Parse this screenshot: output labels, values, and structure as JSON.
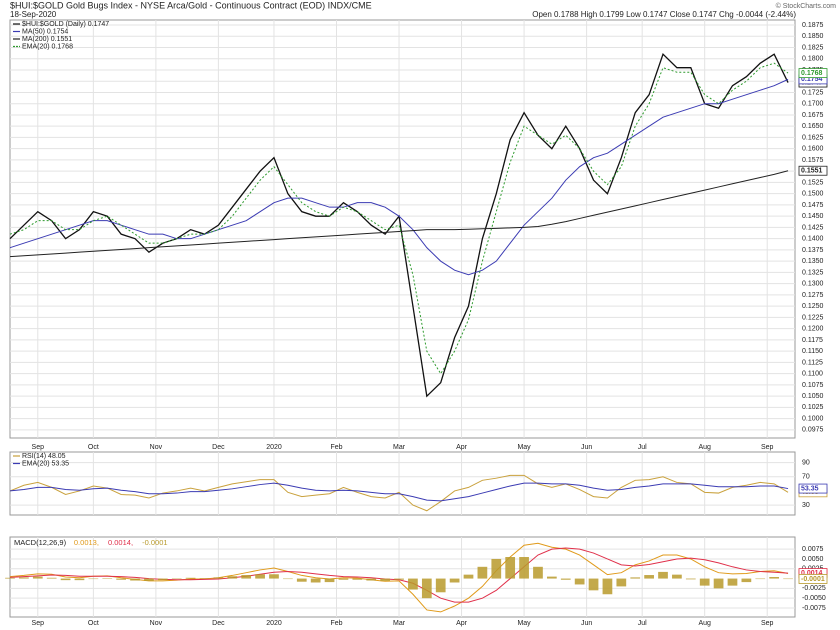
{
  "chart_data": [
    {
      "type": "line",
      "title": "$HUI:$GOLD Gold Bugs Index - NYSE Arca/Gold - Continuous Contract (EOD) INDX/CME",
      "date": "18-Sep-2020",
      "quote": "Open 0.1788 High 0.1799 Low 0.1747 Close 0.1747 Chg -0.0044 (-2.44%)",
      "credit": "© StockCharts.com",
      "xlim": [
        0,
        56.5
      ],
      "xticks": [
        {
          "value": 2,
          "label": "Sep"
        },
        {
          "value": 6,
          "label": "Oct"
        },
        {
          "value": 10.5,
          "label": "Nov"
        },
        {
          "value": 15,
          "label": "Dec"
        },
        {
          "value": 19,
          "label": "2020"
        },
        {
          "value": 23.5,
          "label": "Feb"
        },
        {
          "value": 28,
          "label": "Mar"
        },
        {
          "value": 32.5,
          "label": "Apr"
        },
        {
          "value": 37,
          "label": "May"
        },
        {
          "value": 41.5,
          "label": "Jun"
        },
        {
          "value": 45.5,
          "label": "Jul"
        },
        {
          "value": 50,
          "label": "Aug"
        },
        {
          "value": 54.5,
          "label": "Sep"
        }
      ],
      "ylim": [
        0.0957,
        0.1886
      ],
      "yticks": [
        0.0975,
        {
          "value": 0.1,
          "label": "0.1000"
        },
        0.1025,
        {
          "value": 0.105,
          "label": "0.1050"
        },
        0.1075,
        {
          "value": 0.11,
          "label": "0.1100"
        },
        0.1125,
        {
          "value": 0.115,
          "label": "0.1150"
        },
        0.1175,
        {
          "value": 0.12,
          "label": "0.1200"
        },
        0.1225,
        {
          "value": 0.125,
          "label": "0.1250"
        },
        0.1275,
        {
          "value": 0.13,
          "label": "0.1300"
        },
        0.1325,
        {
          "value": 0.135,
          "label": "0.1350"
        },
        0.1375,
        {
          "value": 0.14,
          "label": "0.1400"
        },
        0.1425,
        {
          "value": 0.145,
          "label": "0.1450"
        },
        0.1475,
        {
          "value": 0.15,
          "label": "0.1500"
        },
        0.1525,
        {
          "value": 0.155,
          "label": "0.1550"
        },
        0.1575,
        {
          "value": 0.16,
          "label": "0.1600"
        },
        0.1625,
        {
          "value": 0.165,
          "label": "0.1650"
        },
        0.1675,
        {
          "value": 0.17,
          "label": "0.1700"
        },
        0.1725,
        {
          "value": 0.175,
          "label": "0.1750"
        },
        0.1775,
        {
          "value": 0.18,
          "label": "0.1800"
        },
        0.1825,
        {
          "value": 0.185,
          "label": "0.1850"
        },
        0.1875
      ],
      "grid": true,
      "series": [
        {
          "name": "$HUI:$GOLD (Daily) 0.1747",
          "color": "#111111",
          "values": [
            0.14,
            0.143,
            0.146,
            0.144,
            0.14,
            0.142,
            0.146,
            0.145,
            0.141,
            0.14,
            0.137,
            0.139,
            0.14,
            0.142,
            0.141,
            0.143,
            0.147,
            0.151,
            0.155,
            0.158,
            0.15,
            0.146,
            0.145,
            0.145,
            0.148,
            0.146,
            0.143,
            0.141,
            0.145,
            0.125,
            0.105,
            0.108,
            0.118,
            0.125,
            0.14,
            0.15,
            0.162,
            0.168,
            0.163,
            0.16,
            0.165,
            0.16,
            0.153,
            0.15,
            0.158,
            0.168,
            0.172,
            0.181,
            0.178,
            0.178,
            0.17,
            0.169,
            0.174,
            0.176,
            0.179,
            0.181,
            0.1747
          ]
        },
        {
          "name": "MA(50) 0.1754",
          "color": "#3b3bb3",
          "values": [
            0.138,
            0.139,
            0.14,
            0.141,
            0.142,
            0.143,
            0.144,
            0.144,
            0.143,
            0.142,
            0.141,
            0.141,
            0.14,
            0.14,
            0.141,
            0.142,
            0.143,
            0.144,
            0.146,
            0.148,
            0.149,
            0.149,
            0.148,
            0.147,
            0.147,
            0.148,
            0.148,
            0.147,
            0.145,
            0.142,
            0.138,
            0.135,
            0.133,
            0.132,
            0.133,
            0.135,
            0.139,
            0.143,
            0.146,
            0.149,
            0.153,
            0.156,
            0.158,
            0.159,
            0.161,
            0.163,
            0.165,
            0.167,
            0.168,
            0.169,
            0.17,
            0.17,
            0.171,
            0.172,
            0.173,
            0.174,
            0.1754
          ]
        },
        {
          "name": "MA(200) 0.1551",
          "color": "#222222",
          "values": [
            0.136,
            0.1362,
            0.1364,
            0.1366,
            0.1368,
            0.137,
            0.1372,
            0.1374,
            0.1376,
            0.1378,
            0.138,
            0.1382,
            0.1384,
            0.1386,
            0.1388,
            0.139,
            0.1392,
            0.1394,
            0.1396,
            0.1398,
            0.14,
            0.1402,
            0.1404,
            0.1406,
            0.1408,
            0.141,
            0.1412,
            0.1414,
            0.1416,
            0.1418,
            0.142,
            0.142,
            0.142,
            0.1421,
            0.1422,
            0.1423,
            0.1424,
            0.1425,
            0.1427,
            0.1432,
            0.1438,
            0.1445,
            0.1452,
            0.1459,
            0.1466,
            0.1473,
            0.148,
            0.1487,
            0.1494,
            0.1501,
            0.1508,
            0.1515,
            0.1522,
            0.1529,
            0.1536,
            0.1543,
            0.1551
          ]
        },
        {
          "name": "EMA(20) 0.1768",
          "color": "#2e9a2e",
          "dash": true,
          "values": [
            0.141,
            0.142,
            0.144,
            0.144,
            0.142,
            0.142,
            0.144,
            0.145,
            0.143,
            0.141,
            0.139,
            0.139,
            0.14,
            0.141,
            0.141,
            0.142,
            0.145,
            0.149,
            0.153,
            0.156,
            0.152,
            0.148,
            0.146,
            0.145,
            0.147,
            0.146,
            0.144,
            0.142,
            0.143,
            0.132,
            0.115,
            0.11,
            0.115,
            0.122,
            0.135,
            0.146,
            0.157,
            0.165,
            0.163,
            0.161,
            0.163,
            0.16,
            0.155,
            0.152,
            0.156,
            0.165,
            0.17,
            0.178,
            0.177,
            0.177,
            0.172,
            0.17,
            0.173,
            0.175,
            0.178,
            0.179,
            0.1768
          ]
        }
      ]
    },
    {
      "type": "line",
      "xlim": [
        0,
        56.5
      ],
      "ylim": [
        16,
        105
      ],
      "yticks": [
        30,
        70,
        90
      ],
      "grid": true,
      "series": [
        {
          "name": "RSI(14) 48.05",
          "color": "#c9a13c",
          "values": [
            50,
            58,
            62,
            55,
            45,
            50,
            57,
            54,
            45,
            44,
            40,
            47,
            50,
            54,
            50,
            55,
            60,
            63,
            66,
            66,
            48,
            42,
            44,
            46,
            55,
            48,
            42,
            40,
            48,
            30,
            22,
            35,
            50,
            55,
            65,
            68,
            72,
            72,
            60,
            55,
            60,
            52,
            42,
            40,
            55,
            65,
            66,
            70,
            62,
            60,
            48,
            47,
            55,
            58,
            62,
            60,
            48.05
          ]
        },
        {
          "name": "EMA(20) 53.35",
          "color": "#3b3bb3",
          "values": [
            50,
            52,
            55,
            55,
            52,
            51,
            53,
            54,
            51,
            49,
            46,
            46,
            47,
            49,
            49,
            51,
            53,
            56,
            59,
            61,
            58,
            54,
            51,
            50,
            51,
            50,
            48,
            46,
            46,
            42,
            37,
            36,
            39,
            42,
            47,
            52,
            57,
            61,
            61,
            60,
            60,
            58,
            54,
            51,
            52,
            55,
            57,
            60,
            60,
            60,
            58,
            56,
            56,
            56,
            57,
            57,
            53.35
          ]
        }
      ]
    },
    {
      "type": "line",
      "legend_label": "MACD(12,26,9)",
      "xlim": [
        0,
        56.5
      ],
      "xticks": [
        {
          "value": 2,
          "label": "Sep"
        },
        {
          "value": 6,
          "label": "Oct"
        },
        {
          "value": 10.5,
          "label": "Nov"
        },
        {
          "value": 15,
          "label": "Dec"
        },
        {
          "value": 19,
          "label": "2020"
        },
        {
          "value": 23.5,
          "label": "Feb"
        },
        {
          "value": 28,
          "label": "Mar"
        },
        {
          "value": 32.5,
          "label": "Apr"
        },
        {
          "value": 37,
          "label": "May"
        },
        {
          "value": 41.5,
          "label": "Jun"
        },
        {
          "value": 45.5,
          "label": "Jul"
        },
        {
          "value": 50,
          "label": "Aug"
        },
        {
          "value": 54.5,
          "label": "Sep"
        }
      ],
      "ylim": [
        -0.0098,
        0.0106
      ],
      "yticks": [
        0.0075,
        {
          "value": 0.005,
          "label": "0.0050"
        },
        0.0025,
        -0.0025,
        {
          "value": -0.005,
          "label": "-0.0050"
        },
        -0.0075
      ],
      "grid": true,
      "series": [
        {
          "name": "0.0013,",
          "color": "#e09a1a",
          "values": [
            0.0005,
            0.0008,
            0.0012,
            0.0011,
            0.0004,
            0.0002,
            0.0006,
            0.0007,
            0.0002,
            -0.0002,
            -0.0006,
            -0.0006,
            -0.0004,
            -0.0001,
            -0.0001,
            0.0002,
            0.0008,
            0.0015,
            0.0022,
            0.0027,
            0.0018,
            0.0008,
            0.0002,
            -0.0001,
            0.0002,
            0.0001,
            -0.0003,
            -0.0007,
            -0.0006,
            -0.004,
            -0.008,
            -0.0085,
            -0.007,
            -0.005,
            -0.002,
            0.002,
            0.0055,
            0.0085,
            0.009,
            0.008,
            0.0075,
            0.006,
            0.0035,
            0.001,
            0.0015,
            0.0035,
            0.0045,
            0.006,
            0.006,
            0.005,
            0.003,
            0.0015,
            0.0012,
            0.0013,
            0.0018,
            0.002,
            0.0013
          ]
        },
        {
          "name": "0.0014,",
          "color": "#e0304a",
          "values": [
            0.0003,
            0.0005,
            0.0007,
            0.0009,
            0.0008,
            0.0006,
            0.0006,
            0.0006,
            0.0005,
            0.0003,
            0.0,
            -0.0002,
            -0.0003,
            -0.0003,
            -0.0002,
            -0.0001,
            0.0002,
            0.0006,
            0.0011,
            0.0016,
            0.0018,
            0.0016,
            0.0012,
            0.0008,
            0.0005,
            0.0004,
            0.0002,
            -0.0001,
            -0.0003,
            -0.0012,
            -0.003,
            -0.005,
            -0.006,
            -0.006,
            -0.005,
            -0.003,
            0.0,
            0.003,
            0.006,
            0.0075,
            0.0078,
            0.0075,
            0.0065,
            0.005,
            0.0035,
            0.0032,
            0.0036,
            0.0043,
            0.005,
            0.0052,
            0.0048,
            0.004,
            0.003,
            0.0022,
            0.0018,
            0.0016,
            0.0014
          ]
        },
        {
          "name": "-0.0001",
          "color": "#b89a2c",
          "type": "bar",
          "values": [
            0.0002,
            0.0003,
            0.0005,
            0.0002,
            -0.0004,
            -0.0004,
            0.0,
            0.0001,
            -0.0003,
            -0.0005,
            -0.0006,
            -0.0004,
            -0.0001,
            0.0002,
            0.0001,
            0.0003,
            0.0006,
            0.0009,
            0.0011,
            0.0011,
            0.0,
            -0.0008,
            -0.001,
            -0.0009,
            -0.0003,
            -0.0003,
            -0.0005,
            -0.0006,
            -0.0003,
            -0.0028,
            -0.005,
            -0.0035,
            -0.001,
            0.001,
            0.003,
            0.005,
            0.0055,
            0.0055,
            0.003,
            0.0005,
            -0.0003,
            -0.0015,
            -0.003,
            -0.004,
            -0.002,
            0.0003,
            0.0009,
            0.0017,
            0.001,
            -0.0002,
            -0.0018,
            -0.0025,
            -0.0018,
            -0.0009,
            0.0,
            0.0004,
            -0.0001
          ]
        }
      ]
    }
  ]
}
